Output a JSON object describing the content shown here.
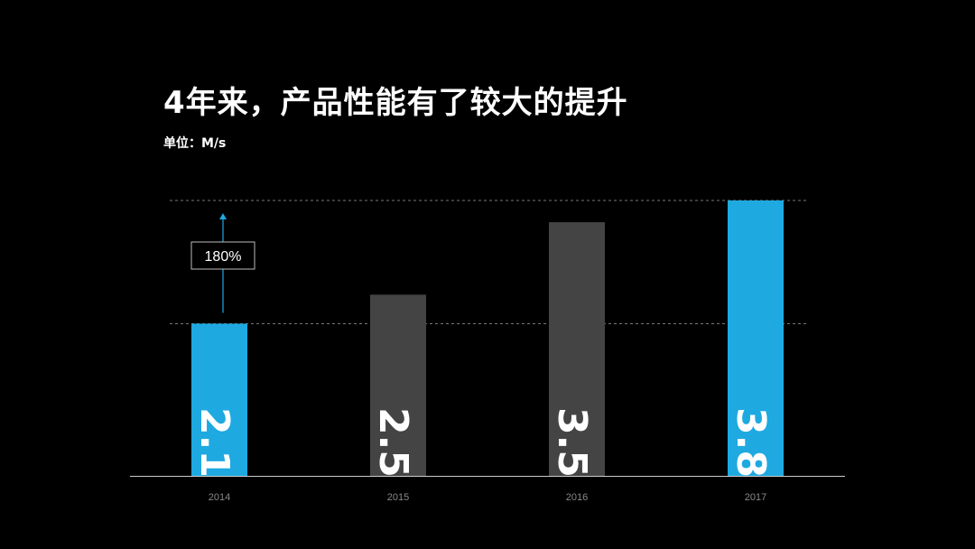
{
  "page": {
    "title": "4年来，产品性能有了较大的提升",
    "unit_label": "单位：M/s"
  },
  "chart_data": {
    "type": "bar",
    "categories": [
      "2014",
      "2015",
      "2016",
      "2017"
    ],
    "values": [
      2.1,
      2.5,
      3.5,
      3.8
    ],
    "value_labels": [
      "2.1",
      "2.5",
      "3.5",
      "3.8"
    ],
    "highlighted": [
      true,
      false,
      false,
      true
    ],
    "ylim": [
      0,
      3.8
    ],
    "grid": false,
    "reference_lines": [
      2.1,
      3.8
    ],
    "annotation": {
      "text": "180%",
      "category": "2014",
      "arrow": "up"
    },
    "colors": {
      "highlight": "#1ea9e1",
      "normal": "#444444",
      "axis": "#cccccc",
      "reference_line": "#777777",
      "tick_label": "#888888"
    }
  }
}
